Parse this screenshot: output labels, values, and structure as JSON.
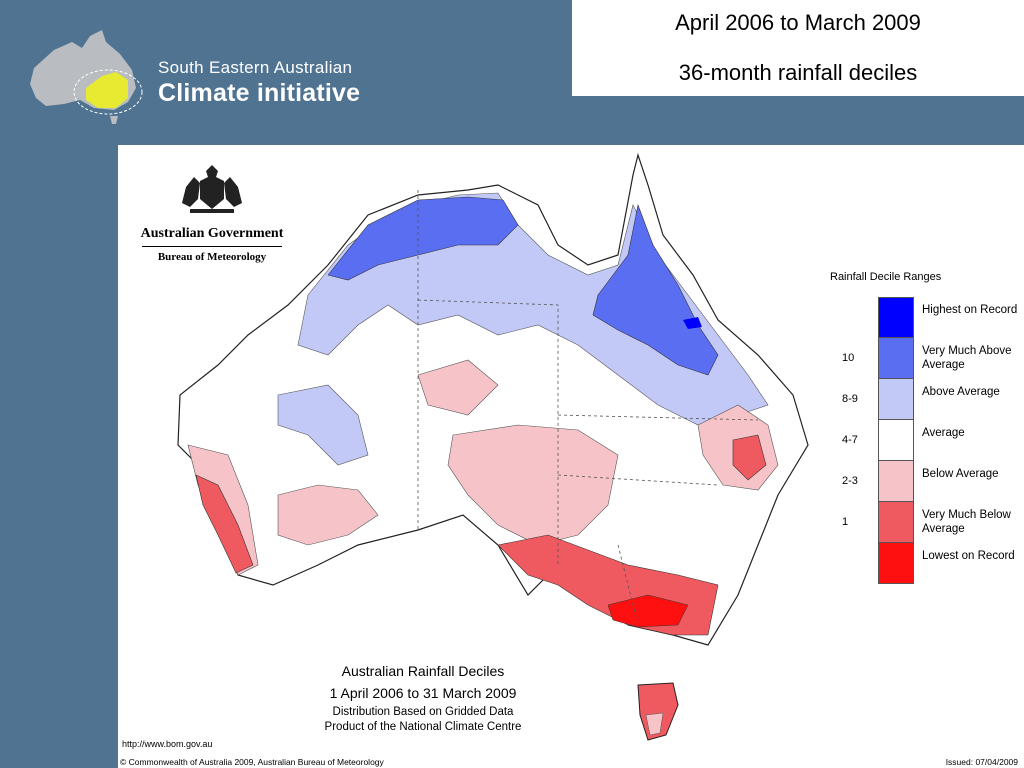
{
  "logo": {
    "line1": "South Eastern Australian",
    "line2": "Climate initiative"
  },
  "title": {
    "line1": "April 2006 to March 2009",
    "line2": "36-month rainfall deciles"
  },
  "gov": {
    "name": "Australian Government",
    "department": "Bureau of Meteorology"
  },
  "legend": {
    "title": "Rainfall Decile Ranges",
    "items": [
      {
        "code": "",
        "label": "Highest on Record",
        "color": "#0000ff"
      },
      {
        "code": "10",
        "label": "Very Much Above Average",
        "color": "#5a6ef2"
      },
      {
        "code": "8-9",
        "label": "Above Average",
        "color": "#c3c9f7"
      },
      {
        "code": "4-7",
        "label": "Average",
        "color": "#ffffff"
      },
      {
        "code": "2-3",
        "label": "Below Average",
        "color": "#f6c4c8"
      },
      {
        "code": "1",
        "label": "Very Much Below Average",
        "color": "#ef5a60"
      },
      {
        "code": "",
        "label": "Lowest on Record",
        "color": "#ff1010"
      }
    ]
  },
  "caption": {
    "line1": "Australian Rainfall Deciles",
    "line2": "1 April 2006 to 31 March 2009",
    "line3": "Distribution Based on Gridded Data",
    "line4": "Product of the National Climate Centre"
  },
  "footer": {
    "url": "http://www.bom.gov.au",
    "copyright": "© Commonwealth of Australia 2009, Australian Bureau of Meteorology",
    "issued": "Issued: 07/04/2009"
  }
}
